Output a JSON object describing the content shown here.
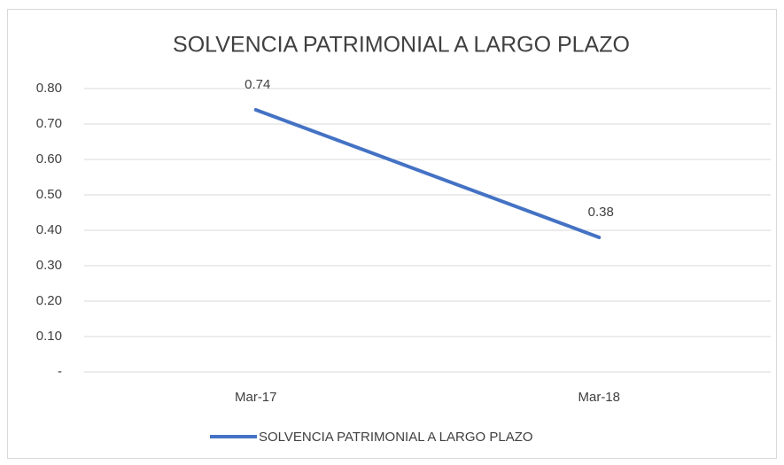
{
  "chart_data": {
    "type": "line",
    "title": "SOLVENCIA PATRIMONIAL A LARGO PLAZO",
    "categories": [
      "Mar-17",
      "Mar-18"
    ],
    "series": [
      {
        "name": "SOLVENCIA PATRIMONIAL A LARGO PLAZO",
        "color": "#4472c4",
        "values": [
          0.74,
          0.38
        ]
      }
    ],
    "ylim": [
      0,
      0.8
    ],
    "yticks": [
      {
        "value": 0,
        "label": "-"
      },
      {
        "value": 0.1,
        "label": "0.10"
      },
      {
        "value": 0.2,
        "label": "0.20"
      },
      {
        "value": 0.3,
        "label": "0.30"
      },
      {
        "value": 0.4,
        "label": "0.40"
      },
      {
        "value": 0.5,
        "label": "0.50"
      },
      {
        "value": 0.6,
        "label": "0.60"
      },
      {
        "value": 0.7,
        "label": "0.70"
      },
      {
        "value": 0.8,
        "label": "0.80"
      }
    ],
    "grid": true,
    "legend": "bottom"
  }
}
